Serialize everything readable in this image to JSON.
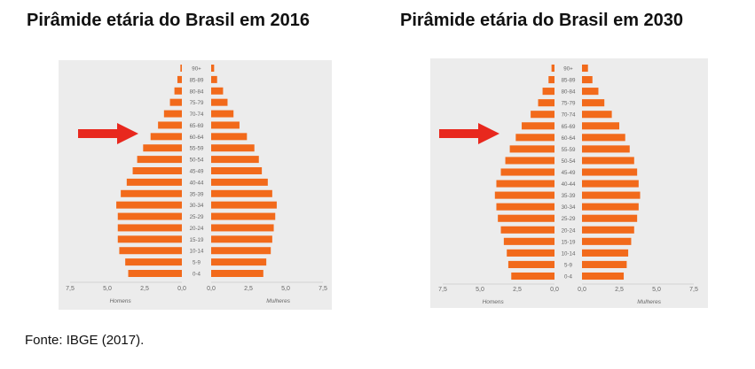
{
  "titles": {
    "left": "Pirâmide etária do Brasil em 2016",
    "right": "Pirâmide etária do Brasil em 2030"
  },
  "source": "Fonte: IBGE (2017).",
  "colors": {
    "bar": "#f26a1b",
    "arrow": "#e8281e",
    "panel": "#ececec"
  },
  "chart_data": [
    {
      "type": "bar",
      "title": "Pirâmide etária do Brasil em 2016",
      "categories": [
        "0-4",
        "5-9",
        "10-14",
        "15-19",
        "20-24",
        "25-29",
        "30-34",
        "35-39",
        "40-44",
        "45-49",
        "50-54",
        "55-59",
        "60-64",
        "65-69",
        "70-74",
        "75-79",
        "80-84",
        "85-89",
        "90+"
      ],
      "series": [
        {
          "name": "Homens",
          "values": [
            3.6,
            3.8,
            4.2,
            4.3,
            4.3,
            4.3,
            4.4,
            4.1,
            3.7,
            3.3,
            3.0,
            2.6,
            2.1,
            1.6,
            1.2,
            0.8,
            0.5,
            0.3,
            0.1
          ]
        },
        {
          "name": "Mulheres",
          "values": [
            3.5,
            3.7,
            4.0,
            4.1,
            4.2,
            4.3,
            4.4,
            4.1,
            3.8,
            3.4,
            3.2,
            2.9,
            2.4,
            1.9,
            1.5,
            1.1,
            0.8,
            0.4,
            0.2
          ]
        }
      ],
      "xticks": [
        "7,5",
        "5,0",
        "2,5",
        "0,0",
        "0,0",
        "2,5",
        "5,0",
        "7,5"
      ],
      "xlim": [
        0,
        7.5
      ]
    },
    {
      "type": "bar",
      "title": "Pirâmide etária do Brasil em 2030",
      "categories": [
        "0-4",
        "5-9",
        "10-14",
        "15-19",
        "20-24",
        "25-29",
        "30-34",
        "35-39",
        "40-44",
        "45-49",
        "50-54",
        "55-59",
        "60-64",
        "65-69",
        "70-74",
        "75-79",
        "80-84",
        "85-89",
        "90+"
      ],
      "series": [
        {
          "name": "Homens",
          "values": [
            2.9,
            3.1,
            3.2,
            3.4,
            3.6,
            3.8,
            3.9,
            4.0,
            3.9,
            3.6,
            3.3,
            3.0,
            2.6,
            2.2,
            1.6,
            1.1,
            0.8,
            0.4,
            0.2
          ]
        },
        {
          "name": "Mulheres",
          "values": [
            2.8,
            3.0,
            3.1,
            3.3,
            3.5,
            3.7,
            3.8,
            3.9,
            3.8,
            3.7,
            3.5,
            3.2,
            2.9,
            2.5,
            2.0,
            1.5,
            1.1,
            0.7,
            0.4
          ]
        }
      ],
      "xticks": [
        "7,5",
        "5,0",
        "2,5",
        "0,0",
        "0,0",
        "2,5",
        "5,0",
        "7,5"
      ],
      "xlim": [
        0,
        7.5
      ]
    }
  ]
}
